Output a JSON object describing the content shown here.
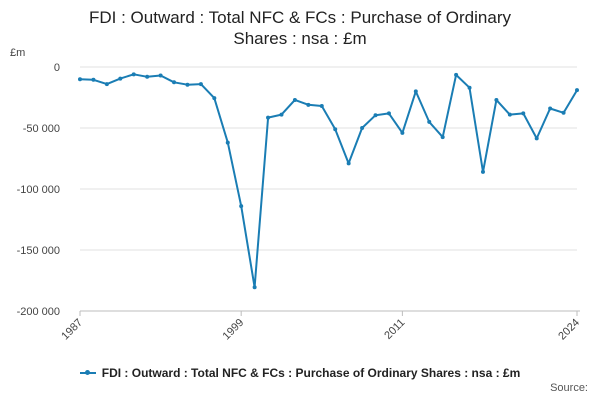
{
  "title_lines": [
    "FDI : Outward : Total NFC & FCs : Purchase of Ordinary",
    "Shares : nsa : £m"
  ],
  "source_label": "Source:",
  "colors": {
    "series": "#1a7db4",
    "grid": "#e0e0e0",
    "axis": "#bdbdbd"
  },
  "chart_data": {
    "type": "line",
    "title": "FDI : Outward : Total NFC & FCs : Purchase of Ordinary Shares : nsa : £m",
    "unit_label": "£m",
    "ylim": [
      -200000,
      0
    ],
    "y_ticks": [
      0,
      -50000,
      -100000,
      -150000,
      -200000
    ],
    "y_tick_labels": [
      "0",
      "-50 000",
      "-100 000",
      "-150 000",
      "-200 000"
    ],
    "xlim": [
      1987,
      2024
    ],
    "x_ticks": [
      1987,
      1999,
      2011,
      2024
    ],
    "x_tick_labels": [
      "1987",
      "1999",
      "2011",
      "2024"
    ],
    "grid": "horizontal",
    "legend": "bottom",
    "series": [
      {
        "name": "FDI : Outward : Total NFC & FCs : Purchase of Ordinary Shares : nsa : £m",
        "x": [
          1987,
          1988,
          1989,
          1990,
          1991,
          1992,
          1993,
          1994,
          1995,
          1996,
          1997,
          1998,
          1999,
          2000,
          2001,
          2002,
          2003,
          2004,
          2005,
          2006,
          2007,
          2008,
          2009,
          2010,
          2011,
          2012,
          2013,
          2014,
          2015,
          2016,
          2017,
          2018,
          2019,
          2020,
          2021,
          2022,
          2023,
          2024
        ],
        "values": [
          -10000,
          -10500,
          -14000,
          -9500,
          -6000,
          -8000,
          -7000,
          -12500,
          -14500,
          -14000,
          -25500,
          -62000,
          -114000,
          -180500,
          -41500,
          -39000,
          -27000,
          -31000,
          -32000,
          -51000,
          -79000,
          -50000,
          -39500,
          -38000,
          -54000,
          -20000,
          -45000,
          -57500,
          -6500,
          -17000,
          -86000,
          -27000,
          -39000,
          -38000,
          -58500,
          -34000,
          -37500,
          -19000
        ]
      }
    ]
  }
}
